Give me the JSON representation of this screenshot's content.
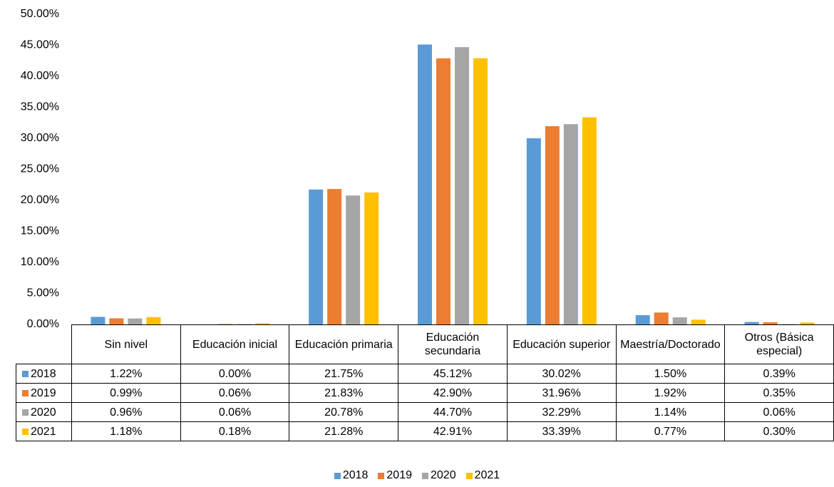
{
  "chart_data": {
    "type": "bar",
    "categories": [
      "Sin nivel",
      "Educación inicial",
      "Educación primaria",
      "Educación secundaria",
      "Educación superior",
      "Maestría/Doctorado",
      "Otros (Básica especial)"
    ],
    "series": [
      {
        "name": "2018",
        "color": "#5b9bd5",
        "values": [
          1.22,
          0,
          21.75,
          45.12,
          30.02,
          1.5,
          0.39
        ],
        "value_labels": [
          "1.22%",
          "0.00%",
          "21.75%",
          "45.12%",
          "30.02%",
          "1.50%",
          "0.39%"
        ]
      },
      {
        "name": "2019",
        "color": "#ed7d31",
        "values": [
          0.99,
          0.06,
          21.83,
          42.9,
          31.96,
          1.92,
          0.35
        ],
        "value_labels": [
          "0.99%",
          "0.06%",
          "21.83%",
          "42.90%",
          "31.96%",
          "1.92%",
          "0.35%"
        ]
      },
      {
        "name": "2020",
        "color": "#a5a5a5",
        "values": [
          0.96,
          0.06,
          20.78,
          44.7,
          32.29,
          1.14,
          0.06
        ],
        "value_labels": [
          "0.96%",
          "0.06%",
          "20.78%",
          "44.70%",
          "32.29%",
          "1.14%",
          "0.06%"
        ]
      },
      {
        "name": "2021",
        "color": "#ffc000",
        "values": [
          1.18,
          0.18,
          21.28,
          42.91,
          33.39,
          0.77,
          0.3
        ],
        "value_labels": [
          "1.18%",
          "0.18%",
          "21.28%",
          "42.91%",
          "33.39%",
          "0.77%",
          "0.30%"
        ]
      }
    ],
    "ylim": [
      0,
      50
    ],
    "yticks": [
      {
        "value": 0,
        "label": "0.00%"
      },
      {
        "value": 5,
        "label": "5.00%"
      },
      {
        "value": 10,
        "label": "10.00%"
      },
      {
        "value": 15,
        "label": "15.00%"
      },
      {
        "value": 20,
        "label": "20.00%"
      },
      {
        "value": 25,
        "label": "25.00%"
      },
      {
        "value": 30,
        "label": "30.00%"
      },
      {
        "value": 35,
        "label": "35.00%"
      },
      {
        "value": 40,
        "label": "40.00%"
      },
      {
        "value": 45,
        "label": "45.00%"
      },
      {
        "value": 50,
        "label": "50.00%"
      }
    ],
    "grid": false,
    "legend": "bottom"
  }
}
